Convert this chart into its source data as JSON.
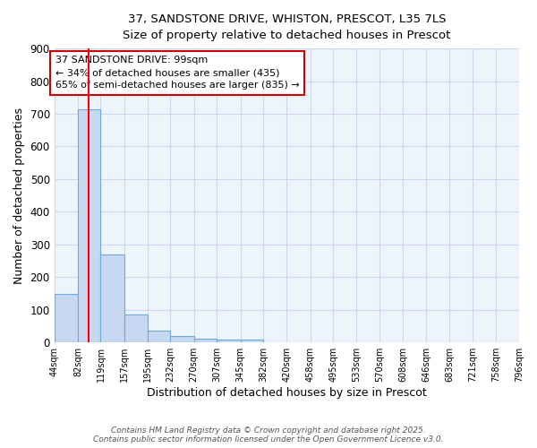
{
  "title_line1": "37, SANDSTONE DRIVE, WHISTON, PRESCOT, L35 7LS",
  "title_line2": "Size of property relative to detached houses in Prescot",
  "xlabel": "Distribution of detached houses by size in Prescot",
  "ylabel": "Number of detached properties",
  "bar_values": [
    150,
    715,
    270,
    85,
    35,
    20,
    12,
    10,
    10,
    0,
    0,
    0,
    0,
    0,
    0,
    0,
    0,
    0,
    0,
    0
  ],
  "bin_edges": [
    44,
    82,
    119,
    157,
    195,
    232,
    270,
    307,
    345,
    382,
    420,
    458,
    495,
    533,
    570,
    608,
    646,
    683,
    721,
    758,
    796
  ],
  "tick_labels": [
    "44sqm",
    "82sqm",
    "119sqm",
    "157sqm",
    "195sqm",
    "232sqm",
    "270sqm",
    "307sqm",
    "345sqm",
    "382sqm",
    "420sqm",
    "458sqm",
    "495sqm",
    "533sqm",
    "570sqm",
    "608sqm",
    "646sqm",
    "683sqm",
    "721sqm",
    "758sqm",
    "796sqm"
  ],
  "bar_color": "#c5d8f0",
  "bar_edge_color": "#6aaae0",
  "red_line_x": 99,
  "ylim": [
    0,
    900
  ],
  "yticks": [
    0,
    100,
    200,
    300,
    400,
    500,
    600,
    700,
    800,
    900
  ],
  "annotation_title": "37 SANDSTONE DRIVE: 99sqm",
  "annotation_line2": "← 34% of detached houses are smaller (435)",
  "annotation_line3": "65% of semi-detached houses are larger (835) →",
  "annotation_box_color": "#ffffff",
  "annotation_box_edge_color": "#cc0000",
  "footer_line1": "Contains HM Land Registry data © Crown copyright and database right 2025.",
  "footer_line2": "Contains public sector information licensed under the Open Government Licence v3.0.",
  "background_color": "#ffffff",
  "plot_bg_color": "#eef4fc",
  "grid_color": "#c8d8ee"
}
